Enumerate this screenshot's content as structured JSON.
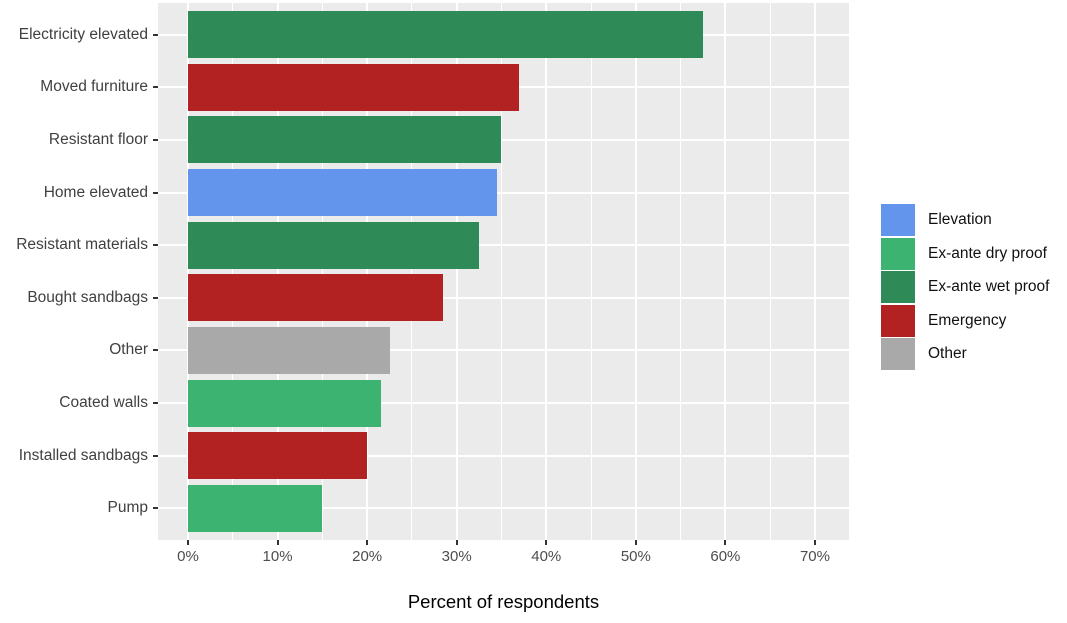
{
  "chart_data": {
    "type": "bar",
    "orientation": "horizontal",
    "title": "",
    "xlabel": "Percent of respondents",
    "ylabel": "",
    "categories": [
      "Electricity elevated",
      "Moved furniture",
      "Resistant floor",
      "Home elevated",
      "Resistant materials",
      "Bought sandbags",
      "Other",
      "Coated walls",
      "Installed sandbags",
      "Pump"
    ],
    "values": [
      57.5,
      37,
      35,
      34.5,
      32.5,
      28.5,
      22.5,
      21.5,
      20,
      15
    ],
    "groups": [
      "Ex-ante wet proof",
      "Emergency",
      "Ex-ante wet proof",
      "Elevation",
      "Ex-ante wet proof",
      "Emergency",
      "Other",
      "Ex-ante dry proof",
      "Emergency",
      "Ex-ante dry proof"
    ],
    "x_ticks": {
      "values": [
        0,
        10,
        20,
        30,
        40,
        50,
        60,
        70
      ],
      "labels": [
        "0%",
        "10%",
        "20%",
        "30%",
        "40%",
        "50%",
        "60%",
        "70%"
      ]
    },
    "x_minor_ticks": [
      5,
      15,
      25,
      35,
      45,
      55,
      65
    ],
    "xlim_display": [
      -3.35,
      73.8
    ],
    "grid": true,
    "legend": {
      "position": "right",
      "entries": [
        {
          "label": "Elevation",
          "color": "#6495ED"
        },
        {
          "label": "Ex-ante dry proof",
          "color": "#3CB371"
        },
        {
          "label": "Ex-ante wet proof",
          "color": "#2E8B57"
        },
        {
          "label": "Emergency",
          "color": "#B22222"
        },
        {
          "label": "Other",
          "color": "#A9A9A9"
        }
      ]
    }
  },
  "colors": {
    "figure_bg": "#FFFFFF",
    "panel_bg": "#EBEBEB",
    "gridline": "#FFFFFF",
    "tick": "#333333",
    "axis_text": "#4D4D4D",
    "category_text": "#404040",
    "axis_title_text": "#000000"
  }
}
